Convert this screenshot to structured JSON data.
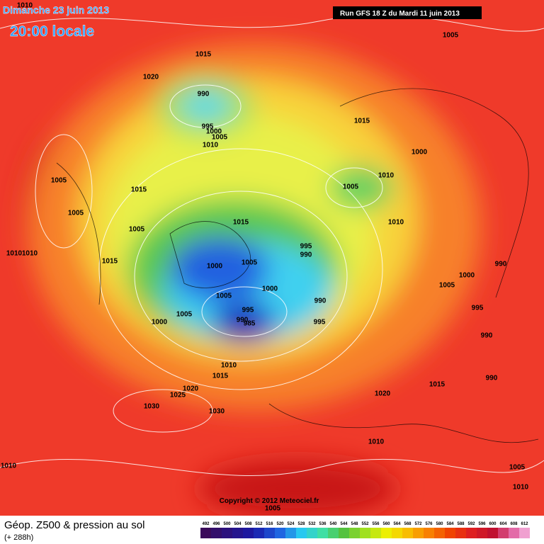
{
  "header": {
    "date": "Dimanche 23 juin 2013",
    "time": "20:00 locale",
    "run": "Run GFS 18 Z du Mardi 11 juin 2013"
  },
  "map": {
    "isobar_labels": [
      1010,
      1005,
      1015,
      1020,
      990,
      995,
      1000,
      1005,
      1010,
      1015,
      1000,
      1010,
      1005,
      1005,
      1015,
      1005,
      1010,
      1005,
      1015,
      1010,
      1010,
      995,
      990,
      990,
      1015,
      1000,
      1005,
      1000,
      1005,
      1000,
      1005,
      990,
      995,
      995,
      1005,
      990,
      985,
      1000,
      995,
      990,
      1010,
      1015,
      990,
      1015,
      1020,
      1025,
      1020,
      1030,
      1030,
      1010,
      1010,
      1005,
      1010,
      1005
    ]
  },
  "copyright": "Copyright © 2012 Meteociel.fr",
  "footer": {
    "title": "Géop. Z500 & pression au sol",
    "subtitle": "(+ 288h)",
    "scale": [
      492,
      496,
      500,
      504,
      508,
      512,
      516,
      520,
      524,
      528,
      532,
      536,
      540,
      544,
      548,
      552,
      556,
      560,
      564,
      568,
      572,
      576,
      580,
      584,
      588,
      592,
      596,
      600,
      604,
      608,
      612
    ]
  }
}
